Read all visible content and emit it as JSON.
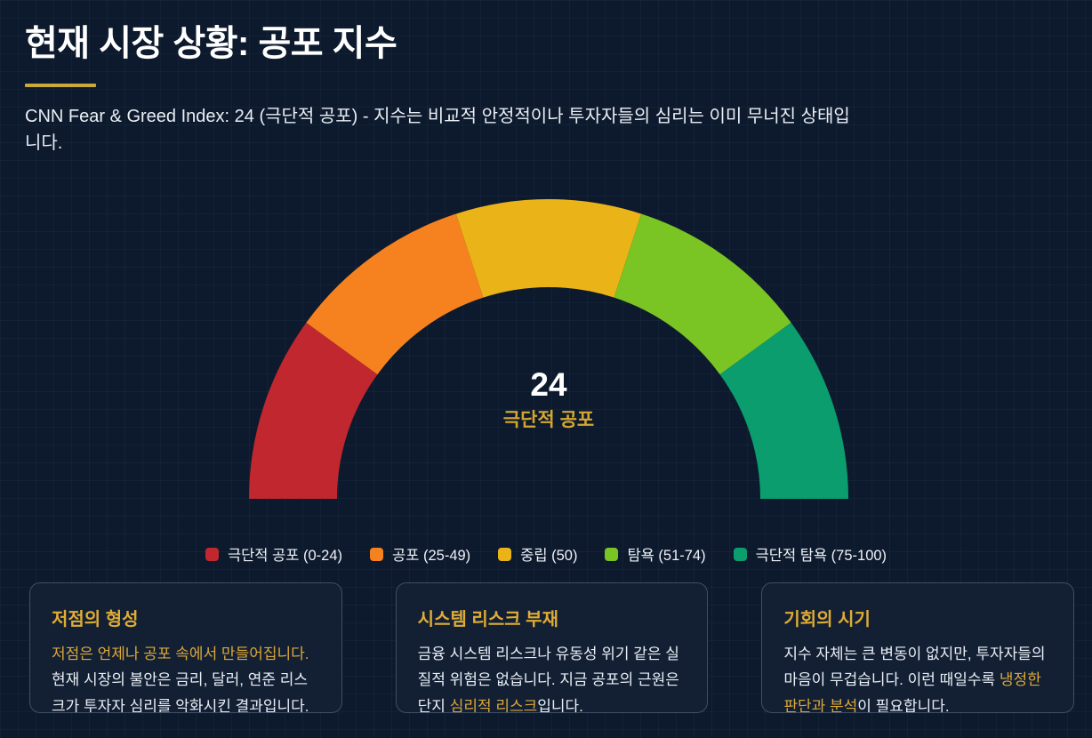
{
  "header": {
    "title": "현재 시장 상황: 공포 지수",
    "subtitle": "CNN Fear & Greed Index: 24 (극단적 공포) - 지수는 비교적 안정적이나 투자자들의 심리는 이미 무너진 상태입니다."
  },
  "chart_data": {
    "type": "gauge",
    "shape": "semicircle-donut",
    "min": 0,
    "max": 100,
    "value": 24,
    "value_label": "극단적 공포",
    "equal_visual_segments": true,
    "legend_position": "bottom-center",
    "segments": [
      {
        "label": "극단적 공포 (0-24)",
        "range": "0-24",
        "color": "#c0272e"
      },
      {
        "label": "공포 (25-49)",
        "range": "25-49",
        "color": "#f6821f"
      },
      {
        "label": "중립 (50)",
        "range": "50",
        "color": "#eab419"
      },
      {
        "label": "탐욕 (51-74)",
        "range": "51-74",
        "color": "#7ac424"
      },
      {
        "label": "극단적 탐욕 (75-100)",
        "range": "75-100",
        "color": "#0b9d6e"
      }
    ]
  },
  "cards": [
    {
      "title": "저점의 형성",
      "segments": [
        {
          "text": "저점은 언제나 공포 속에서 만들어집니다.",
          "highlight": true
        },
        {
          "text": " 현재 시장의 불안은 금리, 달러, 연준 리스크가 투자자 심리를 악화시킨 결과입니다.",
          "highlight": false
        }
      ]
    },
    {
      "title": "시스템 리스크 부재",
      "segments": [
        {
          "text": "금융 시스템 리스크나 유동성 위기 같은 실질적 위험은 없습니다. 지금 공포의 근원은 단지 ",
          "highlight": false
        },
        {
          "text": "심리적 리스크",
          "highlight": true
        },
        {
          "text": "입니다.",
          "highlight": false
        }
      ]
    },
    {
      "title": "기회의 시기",
      "segments": [
        {
          "text": "지수 자체는 큰 변동이 없지만, 투자자들의 마음이 무겁습니다. 이런 때일수록 ",
          "highlight": false
        },
        {
          "text": "냉정한 판단과 분석",
          "highlight": true
        },
        {
          "text": "이 필요합니다.",
          "highlight": false
        }
      ]
    }
  ],
  "colors": {
    "background": "#0d1a2d",
    "accent_gold": "#dfac34",
    "underline_gold": "#c9a83c",
    "gauge_label_gold": "#d5a72f",
    "card_background": "#132034",
    "card_border": "#3e4e66",
    "text_primary": "#ffffff",
    "text_body": "#e9eef5"
  }
}
